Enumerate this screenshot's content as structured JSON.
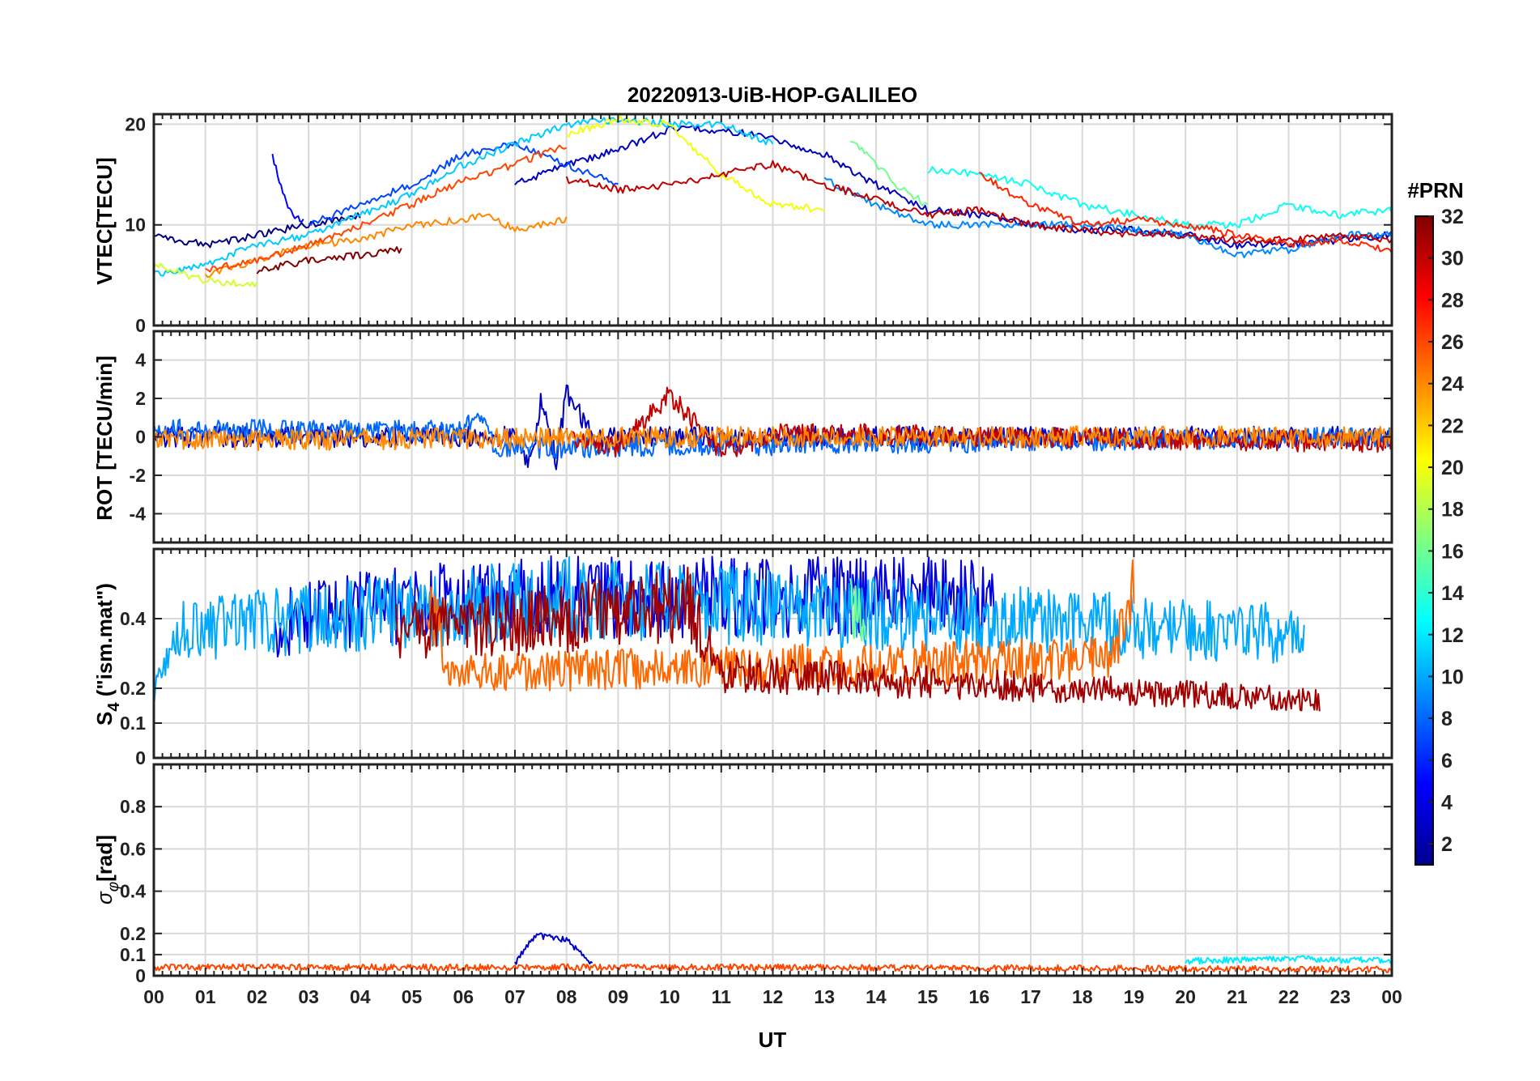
{
  "chart_data": {
    "type": "line",
    "title": "20220913-UiB-HOP-GALILEO",
    "xlabel": "UT",
    "x_ticks": [
      "00",
      "01",
      "02",
      "03",
      "04",
      "05",
      "06",
      "07",
      "08",
      "09",
      "10",
      "11",
      "12",
      "13",
      "14",
      "15",
      "16",
      "17",
      "18",
      "19",
      "20",
      "21",
      "22",
      "23",
      "00"
    ],
    "xlim": [
      0,
      24
    ],
    "colorbar": {
      "label": "#PRN",
      "range": [
        1,
        32
      ],
      "ticks": [
        "32",
        "30",
        "28",
        "26",
        "24",
        "22",
        "20",
        "18",
        "16",
        "14",
        "12",
        "10",
        "8",
        "6",
        "4",
        "2"
      ]
    },
    "panels": [
      {
        "id": "vtec",
        "ylabel": "VTEC[TECU]",
        "ylim": [
          0,
          21
        ],
        "y_ticks": [
          {
            "v": 0,
            "label": "0"
          },
          {
            "v": 10,
            "label": "10"
          },
          {
            "v": 20,
            "label": "20"
          }
        ],
        "series": [
          {
            "prn": 1,
            "points": [
              [
                0.0,
                9.0
              ],
              [
                1.0,
                8.0
              ],
              [
                2.0,
                9.0
              ],
              [
                3.0,
                10.0
              ],
              [
                4.0,
                11.0
              ]
            ]
          },
          {
            "prn": 3,
            "points": [
              [
                7.0,
                14.0
              ],
              [
                8.0,
                16.0
              ],
              [
                9.0,
                17.5
              ],
              [
                10.0,
                19.5
              ],
              [
                11.0,
                19.5
              ],
              [
                12.0,
                18.5
              ],
              [
                13.0,
                17.0
              ],
              [
                14.0,
                14.0
              ],
              [
                15.0,
                11.5
              ],
              [
                16.0,
                11.0
              ],
              [
                17.0,
                10.0
              ],
              [
                18.0,
                9.5
              ],
              [
                19.0,
                9.5
              ],
              [
                20.0,
                9.0
              ],
              [
                21.0,
                8.0
              ],
              [
                22.0,
                8.0
              ],
              [
                23.0,
                8.5
              ],
              [
                24.0,
                9.0
              ]
            ]
          },
          {
            "prn": 5,
            "points": [
              [
                2.3,
                17.0
              ],
              [
                2.5,
                13.0
              ],
              [
                2.7,
                11.0
              ],
              [
                2.9,
                10.5
              ]
            ]
          },
          {
            "prn": 7,
            "points": [
              [
                3.0,
                10.0
              ],
              [
                4.0,
                12.0
              ],
              [
                5.0,
                14.0
              ],
              [
                6.0,
                17.0
              ],
              [
                7.0,
                18.0
              ],
              [
                8.0,
                16.0
              ],
              [
                9.0,
                14.0
              ]
            ]
          },
          {
            "prn": 9,
            "points": [
              [
                13.0,
                14.5
              ],
              [
                14.0,
                12.0
              ],
              [
                15.0,
                10.0
              ],
              [
                16.0,
                10.0
              ],
              [
                17.0,
                10.0
              ],
              [
                18.0,
                10.0
              ],
              [
                19.0,
                9.5
              ],
              [
                20.0,
                9.0
              ],
              [
                21.0,
                7.0
              ],
              [
                22.0,
                7.5
              ],
              [
                23.0,
                9.0
              ],
              [
                24.0,
                9.0
              ]
            ]
          },
          {
            "prn": 11,
            "points": [
              [
                0.0,
                5.0
              ],
              [
                1.0,
                6.0
              ],
              [
                2.0,
                8.0
              ],
              [
                3.0,
                9.0
              ],
              [
                4.0,
                11.0
              ],
              [
                5.0,
                13.0
              ],
              [
                6.0,
                16.0
              ],
              [
                7.0,
                18.0
              ],
              [
                8.0,
                20.0
              ],
              [
                9.0,
                20.5
              ],
              [
                10.0,
                20.0
              ],
              [
                11.0,
                20.0
              ],
              [
                12.0,
                18.0
              ]
            ]
          },
          {
            "prn": 13,
            "points": [
              [
                15.0,
                15.5
              ],
              [
                16.0,
                15.0
              ],
              [
                17.0,
                14.0
              ],
              [
                18.0,
                12.0
              ],
              [
                19.0,
                11.0
              ],
              [
                20.0,
                10.0
              ],
              [
                21.0,
                10.0
              ],
              [
                22.0,
                12.0
              ],
              [
                23.0,
                11.0
              ],
              [
                24.0,
                11.5
              ]
            ]
          },
          {
            "prn": 16,
            "points": [
              [
                13.5,
                18.5
              ],
              [
                14.0,
                16.0
              ],
              [
                14.5,
                13.5
              ],
              [
                15.0,
                12.0
              ]
            ]
          },
          {
            "prn": 19,
            "points": [
              [
                0.0,
                6.0
              ],
              [
                1.0,
                4.5
              ],
              [
                2.0,
                4.0
              ]
            ]
          },
          {
            "prn": 20,
            "points": [
              [
                8.0,
                19.0
              ],
              [
                9.0,
                20.5
              ],
              [
                10.0,
                20.0
              ],
              [
                11.0,
                15.0
              ],
              [
                12.0,
                12.0
              ],
              [
                13.0,
                11.5
              ]
            ]
          },
          {
            "prn": 24,
            "points": [
              [
                1.0,
                5.0
              ],
              [
                2.0,
                6.5
              ],
              [
                3.0,
                8.0
              ],
              [
                4.0,
                8.5
              ],
              [
                5.0,
                10.0
              ],
              [
                6.0,
                10.5
              ],
              [
                6.5,
                11.0
              ],
              [
                7.0,
                9.5
              ],
              [
                8.0,
                10.5
              ]
            ]
          },
          {
            "prn": 26,
            "points": [
              [
                1.0,
                5.5
              ],
              [
                2.0,
                6.5
              ],
              [
                3.0,
                8.0
              ],
              [
                4.0,
                10.0
              ],
              [
                5.0,
                12.0
              ],
              [
                6.0,
                14.5
              ],
              [
                7.0,
                16.0
              ],
              [
                8.0,
                18.0
              ]
            ]
          },
          {
            "prn": 27,
            "points": [
              [
                16.0,
                15.0
              ],
              [
                17.0,
                12.0
              ],
              [
                18.0,
                10.0
              ],
              [
                19.0,
                10.5
              ],
              [
                20.0,
                10.0
              ],
              [
                21.0,
                9.0
              ],
              [
                22.0,
                8.0
              ],
              [
                23.0,
                8.5
              ],
              [
                24.0,
                7.5
              ]
            ]
          },
          {
            "prn": 30,
            "points": [
              [
                8.0,
                14.5
              ],
              [
                9.0,
                13.5
              ],
              [
                10.0,
                14.0
              ],
              [
                11.0,
                15.0
              ],
              [
                12.0,
                16.0
              ],
              [
                13.0,
                14.0
              ],
              [
                14.0,
                12.5
              ],
              [
                15.0,
                11.0
              ],
              [
                16.0,
                11.5
              ],
              [
                17.0,
                10.0
              ],
              [
                18.0,
                9.5
              ],
              [
                19.0,
                9.0
              ],
              [
                20.0,
                9.0
              ],
              [
                21.0,
                8.5
              ],
              [
                22.0,
                8.5
              ],
              [
                23.0,
                9.0
              ],
              [
                24.0,
                8.5
              ]
            ]
          },
          {
            "prn": 32,
            "points": [
              [
                2.0,
                5.5
              ],
              [
                3.0,
                6.5
              ],
              [
                4.0,
                7.0
              ],
              [
                4.8,
                7.5
              ]
            ]
          }
        ]
      },
      {
        "id": "rot",
        "ylabel": "ROT [TECU/min]",
        "ylim": [
          -5.5,
          5.5
        ],
        "y_ticks": [
          {
            "v": -4,
            "label": "-4"
          },
          {
            "v": -2,
            "label": "-2"
          },
          {
            "v": 0,
            "label": "0"
          },
          {
            "v": 2,
            "label": "2"
          },
          {
            "v": 4,
            "label": "4"
          }
        ],
        "series": [
          {
            "prn": 3,
            "points": [
              [
                0.0,
                0.0
              ],
              [
                7.0,
                0.0
              ],
              [
                7.3,
                -1.5
              ],
              [
                7.5,
                1.8
              ],
              [
                7.8,
                -1.2
              ],
              [
                8.0,
                2.3
              ],
              [
                8.5,
                0.0
              ],
              [
                24.0,
                0.0
              ]
            ]
          },
          {
            "prn": 8,
            "points": [
              [
                0.0,
                0.4
              ],
              [
                6.0,
                0.3
              ],
              [
                6.3,
                1.4
              ],
              [
                6.6,
                -0.6
              ],
              [
                24.0,
                0.0
              ]
            ]
          },
          {
            "prn": 30,
            "points": [
              [
                8.0,
                0.0
              ],
              [
                9.0,
                -0.5
              ],
              [
                10.0,
                2.2
              ],
              [
                11.0,
                -0.8
              ],
              [
                12.0,
                0.2
              ],
              [
                24.0,
                -0.3
              ]
            ]
          },
          {
            "prn": 24,
            "points": [
              [
                0.0,
                -0.2
              ],
              [
                12.0,
                0.0
              ],
              [
                24.0,
                0.0
              ]
            ]
          }
        ]
      },
      {
        "id": "s4",
        "ylabel": "S4 (\"ism.mat\")",
        "ylim": [
          0,
          0.6
        ],
        "y_ticks": [
          {
            "v": 0,
            "label": "0"
          },
          {
            "v": 0.1,
            "label": "0.1"
          },
          {
            "v": 0.2,
            "label": "0.2"
          },
          {
            "v": 0.4,
            "label": "0.4"
          }
        ],
        "series": [
          {
            "prn": 4,
            "points": [
              [
                2.3,
                0.42
              ],
              [
                2.8,
                0.52
              ],
              [
                7.0,
                0.58
              ],
              [
                16.3,
                0.58
              ]
            ]
          },
          {
            "prn": 10,
            "points": [
              [
                0.0,
                0.22
              ],
              [
                0.6,
                0.46
              ],
              [
                8.0,
                0.58
              ],
              [
                22.3,
                0.44
              ]
            ]
          },
          {
            "prn": 16,
            "points": [
              [
                13.5,
                0.58
              ],
              [
                13.8,
                0.45
              ]
            ]
          },
          {
            "prn": 25,
            "points": [
              [
                5.3,
                0.57
              ],
              [
                5.8,
                0.3
              ],
              [
                18.5,
                0.35
              ],
              [
                19.0,
                0.58
              ]
            ]
          },
          {
            "prn": 31,
            "points": [
              [
                4.7,
                0.45
              ],
              [
                10.4,
                0.55
              ],
              [
                11.0,
                0.3
              ],
              [
                22.6,
                0.2
              ]
            ]
          }
        ]
      },
      {
        "id": "sigma",
        "ylabel": "σφ[rad]",
        "ylim": [
          0,
          1.0
        ],
        "y_ticks": [
          {
            "v": 0,
            "label": "0"
          },
          {
            "v": 0.1,
            "label": "0.1"
          },
          {
            "v": 0.2,
            "label": "0.2"
          },
          {
            "v": 0.4,
            "label": "0.4"
          },
          {
            "v": 0.6,
            "label": "0.6"
          },
          {
            "v": 0.8,
            "label": "0.8"
          }
        ],
        "series": [
          {
            "prn": 3,
            "points": [
              [
                7.0,
                0.06
              ],
              [
                7.4,
                0.19
              ],
              [
                8.0,
                0.17
              ],
              [
                8.5,
                0.05
              ]
            ]
          },
          {
            "prn": 12,
            "points": [
              [
                20.0,
                0.07
              ],
              [
                22.0,
                0.08
              ],
              [
                24.0,
                0.07
              ]
            ]
          },
          {
            "prn": 26,
            "points": [
              [
                0.0,
                0.04
              ],
              [
                12.0,
                0.04
              ],
              [
                24.0,
                0.03
              ]
            ]
          }
        ]
      }
    ]
  }
}
